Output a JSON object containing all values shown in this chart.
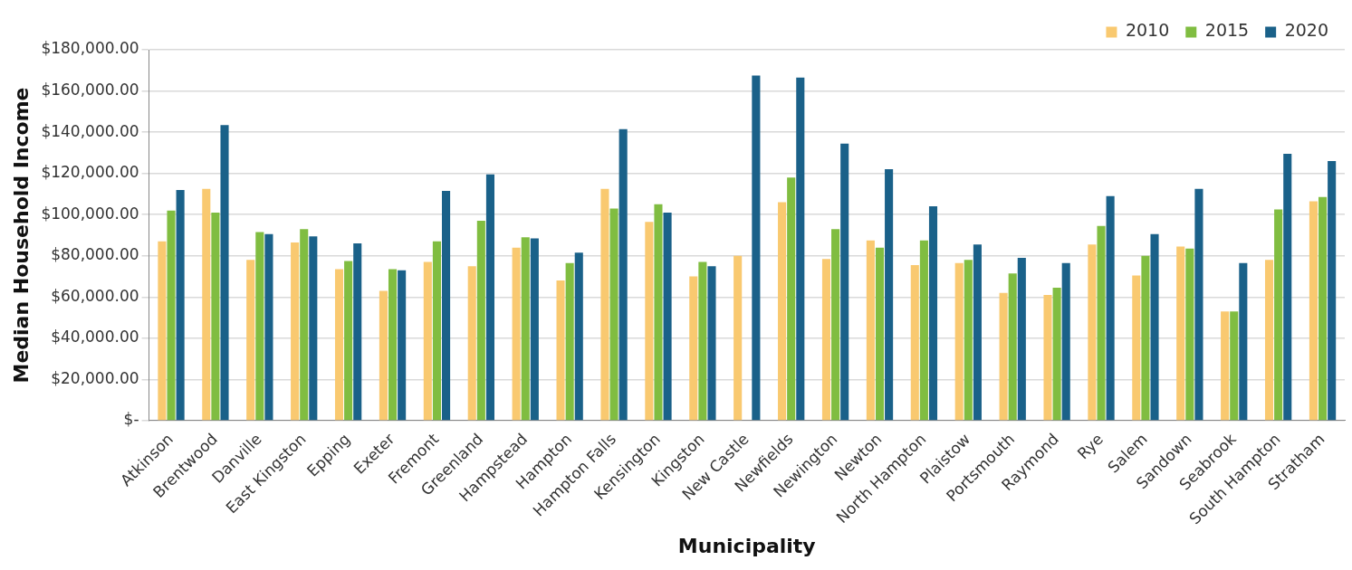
{
  "chart_data": {
    "type": "bar",
    "xlabel": "Municipality",
    "ylabel": "Median Household Income",
    "categories": [
      "Atkinson",
      "Brentwood",
      "Danville",
      "East Kingston",
      "Epping",
      "Exeter",
      "Fremont",
      "Greenland",
      "Hampstead",
      "Hampton",
      "Hampton Falls",
      "Kensington",
      "Kingston",
      "New Castle",
      "Newfields",
      "Newington",
      "Newton",
      "North Hampton",
      "Plaistow",
      "Portsmouth",
      "Raymond",
      "Rye",
      "Salem",
      "Sandown",
      "Seabrook",
      "South Hampton",
      "Stratham"
    ],
    "series": [
      {
        "name": "2010",
        "color": "#f9c970",
        "values": [
          87000,
          112500,
          78000,
          86500,
          73500,
          63000,
          77000,
          75000,
          84000,
          68000,
          112500,
          96500,
          70000,
          80000,
          106000,
          78500,
          87500,
          75500,
          76500,
          62000,
          61000,
          85500,
          70500,
          84500,
          53000,
          78000,
          106500
        ]
      },
      {
        "name": "2015",
        "color": "#80bd41",
        "values": [
          102000,
          101000,
          91500,
          93000,
          77500,
          73500,
          87000,
          97000,
          89000,
          76500,
          103000,
          105000,
          77000,
          null,
          118000,
          93000,
          84000,
          87500,
          78000,
          71500,
          64500,
          94500,
          80000,
          83500,
          53000,
          102500,
          108500
        ]
      },
      {
        "name": "2020",
        "color": "#1a6189",
        "values": [
          112000,
          143500,
          90500,
          89500,
          86000,
          73000,
          111500,
          119500,
          88500,
          81500,
          141500,
          101000,
          75000,
          167500,
          166500,
          134500,
          122000,
          104000,
          85500,
          79000,
          76500,
          109000,
          90500,
          112500,
          76500,
          129500,
          126000
        ]
      }
    ],
    "ylim": [
      0,
      180000
    ],
    "yticks": [
      {
        "value": 0,
        "label": "$-"
      },
      {
        "value": 20000,
        "label": "$20,000.00"
      },
      {
        "value": 40000,
        "label": "$40,000.00"
      },
      {
        "value": 60000,
        "label": "$60,000.00"
      },
      {
        "value": 80000,
        "label": "$80,000.00"
      },
      {
        "value": 100000,
        "label": "$100,000.00"
      },
      {
        "value": 120000,
        "label": "$120,000.00"
      },
      {
        "value": 140000,
        "label": "$140,000.00"
      },
      {
        "value": 160000,
        "label": "$160,000.00"
      },
      {
        "value": 180000,
        "label": "$180,000.00"
      }
    ],
    "grid": "y",
    "legend": "top right"
  }
}
